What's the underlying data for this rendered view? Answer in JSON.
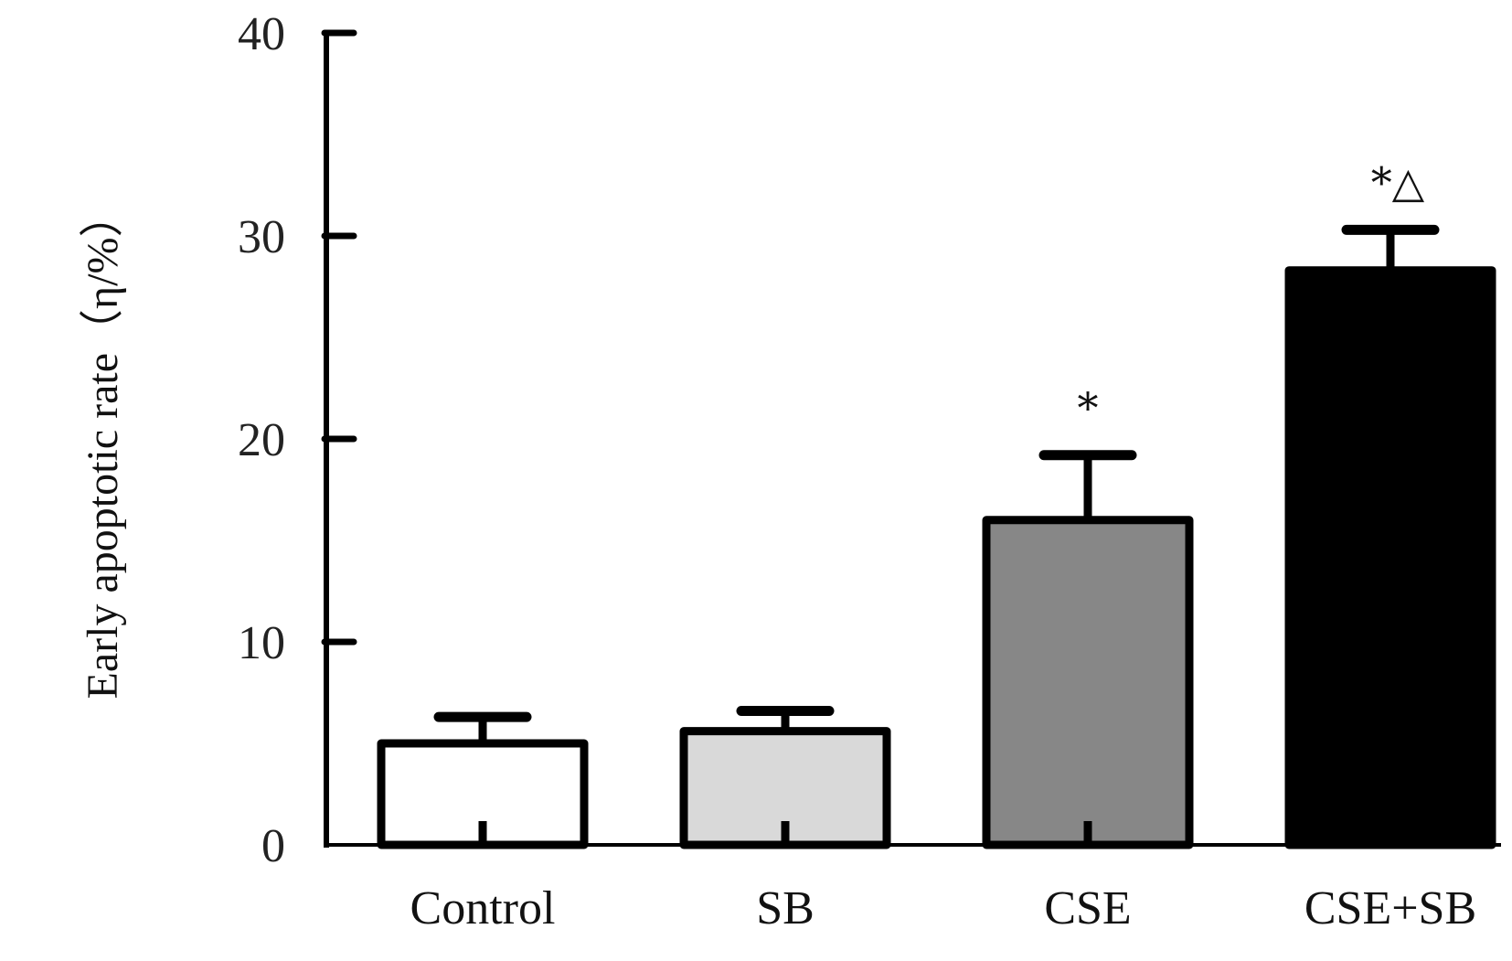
{
  "chart_data": {
    "type": "bar",
    "title": "",
    "xlabel": "",
    "ylabel": "Early apoptotic rate（η/%）",
    "ylim": [
      0,
      40
    ],
    "yticks": [
      "0",
      "10",
      "20",
      "30",
      "40"
    ],
    "categories": [
      "Control",
      "SB",
      "CSE",
      "CSE+SB"
    ],
    "values": [
      5.0,
      5.6,
      16.0,
      28.3
    ],
    "errors": [
      1.3,
      1.0,
      3.2,
      2.0
    ],
    "annotations": [
      "",
      "",
      "*",
      "*△"
    ],
    "bar_colors": [
      "#ffffff",
      "#d9d9d9",
      "#878787",
      "#000000"
    ],
    "axis_color": "#000000",
    "grid": false,
    "legend": false
  }
}
